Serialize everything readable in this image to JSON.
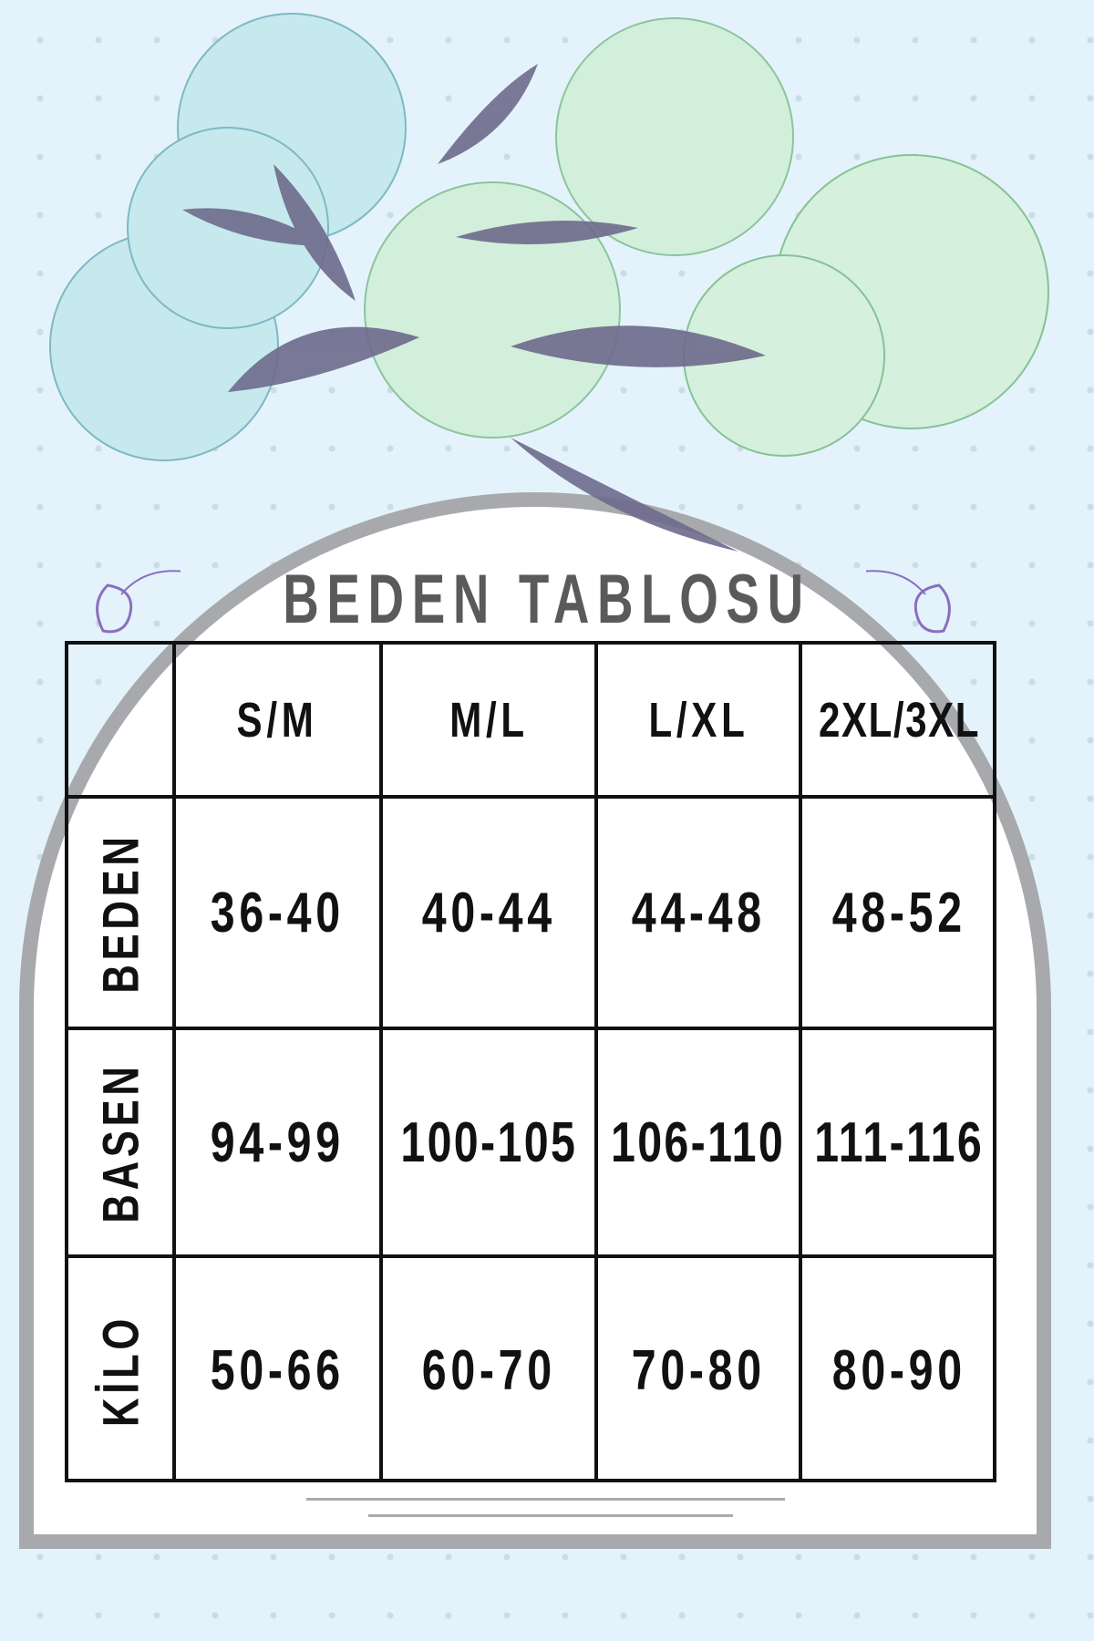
{
  "title": "BEDEN TABLOSU",
  "colors": {
    "background": "#e4f3fb",
    "frame": "#a7a9ad",
    "title": "#5a5a5a",
    "table_border": "#111111",
    "leaf": "#6e6a8c",
    "flower_blue": "#bfe6ea",
    "flower_green": "#cfeed6"
  },
  "table": {
    "columns": [
      "",
      "S/M",
      "M/L",
      "L/XL",
      "2XL/3XL"
    ],
    "rows": [
      {
        "label": "BEDEN",
        "values": [
          "36-40",
          "40-44",
          "44-48",
          "48-52"
        ]
      },
      {
        "label": "BASEN",
        "values": [
          "94-99",
          "100-105",
          "106-110",
          "111-116"
        ]
      },
      {
        "label": "KİLO",
        "values": [
          "50-66",
          "60-70",
          "70-80",
          "80-90"
        ]
      }
    ]
  }
}
